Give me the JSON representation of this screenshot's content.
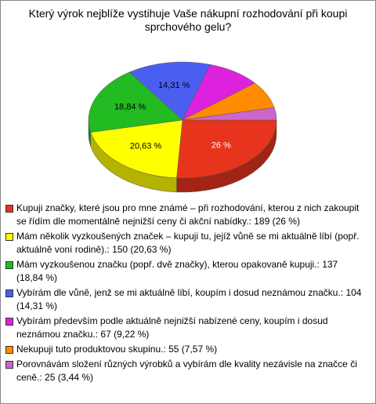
{
  "chart_data": {
    "type": "pie3d",
    "title": "Který výrok nejblíže vystihuje Vaše nákupní rozhodování při koupi sprchového gelu?",
    "categories": [
      "Kupuji značky, které jsou pro mne známé – při rozhodování, kterou z nich zakoupit se řídím dle momentálně nejnižší ceny či akční nabídky.: 189 (26 %)",
      "Mám několik vyzkoušených značek – kupuji tu, jejíž vůně se mi aktuálně líbí (popř. aktuálně voní rodině).: 150 (20,63 %)",
      "Mám vyzkoušenou značku (popř. dvě značky), kterou opakovaně kupuji.: 137 (18,84 %)",
      "Vybírám dle vůně, jenž se mi aktuálně líbí, koupím i dosud neznámou značku.: 104 (14,31 %)",
      "Vybírám především podle aktuálně nejnižší nabízené ceny, koupím i dosud neznámou značku.: 67 (9,22 %)",
      "Nekupuji tuto produktovou skupinu.: 55 (7,57 %)",
      "Porovnávám složení různých výrobků a vybírám dle kvality nezávisle na značce či ceně.: 25 (3,44 %)"
    ],
    "values": [
      26,
      20.63,
      18.84,
      14.31,
      9.22,
      7.57,
      3.44
    ],
    "value_labels": [
      "26 %",
      "20,63 %",
      "18,84 %",
      "14,31 %",
      null,
      null,
      null
    ],
    "colors": [
      "#e8341c",
      "#ffff00",
      "#22bb22",
      "#4a5ff0",
      "#dd22dd",
      "#ff8c00",
      "#cc66cc"
    ]
  }
}
